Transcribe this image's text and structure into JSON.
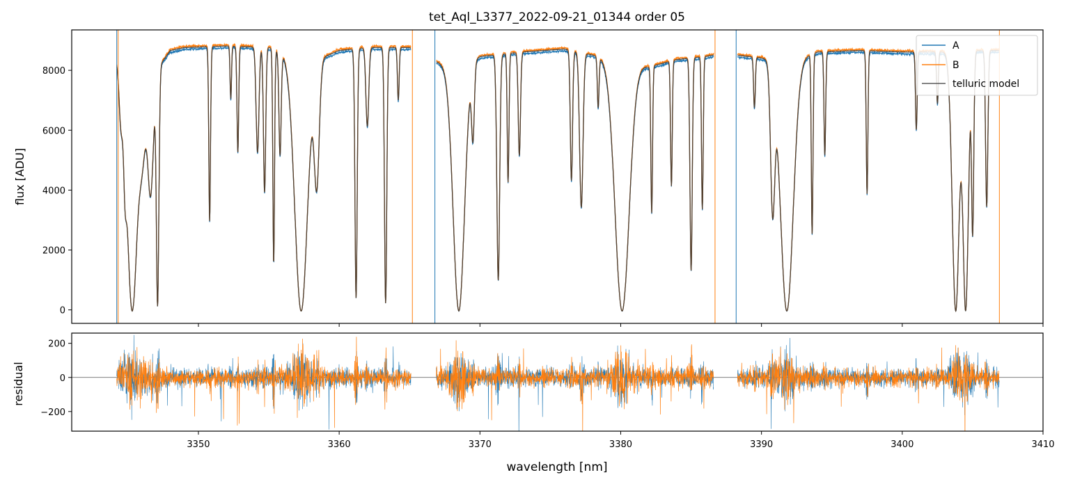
{
  "chart_data": [
    {
      "type": "line",
      "panel": "main",
      "title": "tet_Aql_L3377_2022-09-21_01344  order 05",
      "xlabel": "",
      "ylabel": "flux [ADU]",
      "xlim": [
        3341,
        3410
      ],
      "ylim": [
        -450,
        9350
      ],
      "yticks": [
        0,
        2000,
        4000,
        6000,
        8000
      ],
      "legend_position": "top-right",
      "legend": [
        "A",
        "B",
        "telluric model"
      ],
      "colors": {
        "A": "#1f77b4",
        "B": "#ff7f0e",
        "telluric model": "#333333"
      },
      "continuum": [
        [
          3344.2,
          8300
        ],
        [
          3345.5,
          7300
        ],
        [
          3346.5,
          7700
        ],
        [
          3348,
          8700
        ],
        [
          3349,
          8800
        ],
        [
          3352,
          8850
        ],
        [
          3355,
          8800
        ],
        [
          3358,
          8300
        ],
        [
          3360,
          8700
        ],
        [
          3362,
          8800
        ],
        [
          3365,
          8800
        ],
        [
          3366.8,
          8350
        ],
        [
          3368,
          8100
        ],
        [
          3370,
          8500
        ],
        [
          3373,
          8650
        ],
        [
          3376,
          8750
        ],
        [
          3378,
          8550
        ],
        [
          3380,
          8300
        ],
        [
          3382,
          8150
        ],
        [
          3384,
          8400
        ],
        [
          3386,
          8500
        ],
        [
          3386.6,
          8550
        ],
        [
          3388.2,
          8550
        ],
        [
          3390,
          8450
        ],
        [
          3392,
          8300
        ],
        [
          3394,
          8650
        ],
        [
          3397,
          8700
        ],
        [
          3400,
          8650
        ],
        [
          3403,
          8650
        ],
        [
          3406,
          8700
        ],
        [
          3407,
          8700
        ]
      ],
      "absorption_lines": [
        {
          "center": 3344.5,
          "width": 0.12,
          "depth": 0.2
        },
        {
          "center": 3344.8,
          "width": 0.1,
          "depth": 0.35
        },
        {
          "center": 3345.3,
          "width": 0.35,
          "depth": 1.0
        },
        {
          "center": 3346.0,
          "width": 0.25,
          "depth": 0.3
        },
        {
          "center": 3346.6,
          "width": 0.2,
          "depth": 0.5
        },
        {
          "center": 3347.1,
          "width": 0.09,
          "depth": 0.98
        },
        {
          "center": 3350.8,
          "width": 0.06,
          "depth": 0.66
        },
        {
          "center": 3352.3,
          "width": 0.05,
          "depth": 0.2
        },
        {
          "center": 3352.8,
          "width": 0.06,
          "depth": 0.4
        },
        {
          "center": 3354.2,
          "width": 0.1,
          "depth": 0.4
        },
        {
          "center": 3354.7,
          "width": 0.08,
          "depth": 0.55
        },
        {
          "center": 3355.35,
          "width": 0.06,
          "depth": 0.82
        },
        {
          "center": 3355.8,
          "width": 0.08,
          "depth": 0.4
        },
        {
          "center": 3357.3,
          "width": 0.45,
          "depth": 1.0
        },
        {
          "center": 3358.4,
          "width": 0.18,
          "depth": 0.5
        },
        {
          "center": 3361.2,
          "width": 0.08,
          "depth": 0.95
        },
        {
          "center": 3362.0,
          "width": 0.1,
          "depth": 0.3
        },
        {
          "center": 3363.3,
          "width": 0.08,
          "depth": 0.97
        },
        {
          "center": 3364.2,
          "width": 0.06,
          "depth": 0.2
        },
        {
          "center": 3368.5,
          "width": 0.4,
          "depth": 1.0
        },
        {
          "center": 3369.5,
          "width": 0.1,
          "depth": 0.3
        },
        {
          "center": 3371.3,
          "width": 0.1,
          "depth": 0.88
        },
        {
          "center": 3372.0,
          "width": 0.06,
          "depth": 0.5
        },
        {
          "center": 3372.8,
          "width": 0.08,
          "depth": 0.4
        },
        {
          "center": 3376.5,
          "width": 0.08,
          "depth": 0.5
        },
        {
          "center": 3377.2,
          "width": 0.12,
          "depth": 0.6
        },
        {
          "center": 3378.4,
          "width": 0.06,
          "depth": 0.2
        },
        {
          "center": 3380.1,
          "width": 0.5,
          "depth": 1.0
        },
        {
          "center": 3382.2,
          "width": 0.06,
          "depth": 0.6
        },
        {
          "center": 3383.6,
          "width": 0.06,
          "depth": 0.5
        },
        {
          "center": 3385.0,
          "width": 0.08,
          "depth": 0.84
        },
        {
          "center": 3385.8,
          "width": 0.06,
          "depth": 0.6
        },
        {
          "center": 3389.5,
          "width": 0.06,
          "depth": 0.2
        },
        {
          "center": 3390.8,
          "width": 0.15,
          "depth": 0.6
        },
        {
          "center": 3391.8,
          "width": 0.45,
          "depth": 1.0
        },
        {
          "center": 3393.6,
          "width": 0.06,
          "depth": 0.7
        },
        {
          "center": 3394.5,
          "width": 0.06,
          "depth": 0.4
        },
        {
          "center": 3397.5,
          "width": 0.06,
          "depth": 0.55
        },
        {
          "center": 3401.0,
          "width": 0.06,
          "depth": 0.3
        },
        {
          "center": 3402.5,
          "width": 0.06,
          "depth": 0.2
        },
        {
          "center": 3403.8,
          "width": 0.25,
          "depth": 1.0
        },
        {
          "center": 3404.5,
          "width": 0.2,
          "depth": 1.0
        },
        {
          "center": 3405.0,
          "width": 0.08,
          "depth": 0.7
        },
        {
          "center": 3406.0,
          "width": 0.08,
          "depth": 0.6
        }
      ],
      "gaps": [
        [
          3365.2,
          3366.8
        ],
        [
          3386.7,
          3388.2
        ]
      ],
      "spikes": [
        {
          "x": 3344.2,
          "series": "A"
        },
        {
          "x": 3344.3,
          "series": "B"
        },
        {
          "x": 3365.2,
          "series": "B"
        },
        {
          "x": 3366.8,
          "series": "A"
        },
        {
          "x": 3386.7,
          "series": "B"
        },
        {
          "x": 3388.2,
          "series": "A"
        },
        {
          "x": 3406.9,
          "series": "B"
        }
      ]
    },
    {
      "type": "line",
      "panel": "residual",
      "xlabel": "wavelength [nm]",
      "ylabel": "residual",
      "xlim": [
        3341,
        3410
      ],
      "ylim": [
        -315,
        260
      ],
      "xticks": [
        3350,
        3360,
        3370,
        3380,
        3390,
        3400,
        3410
      ],
      "yticks": [
        -200,
        0,
        200
      ],
      "zero_line": 0,
      "typical_scatter": 40,
      "segments": [
        [
          3344.2,
          3365.1
        ],
        [
          3366.9,
          3386.6
        ],
        [
          3388.3,
          3406.9
        ]
      ]
    }
  ]
}
